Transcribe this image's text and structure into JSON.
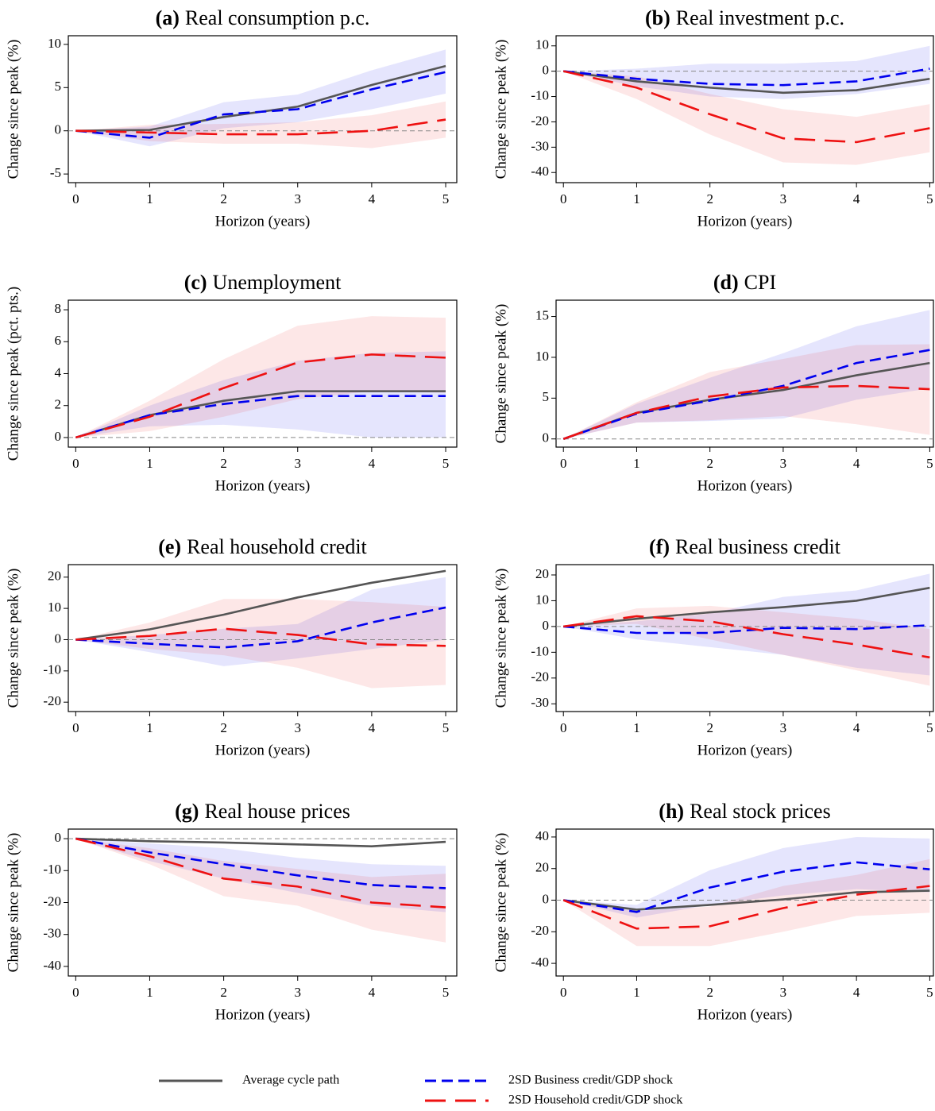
{
  "chart_data": [
    {
      "type": "line",
      "panel_label": "(a)",
      "title": "Real consumption p.c.",
      "xlabel": "Horizon (years)",
      "ylabel": "Change since peak (%)",
      "x": [
        0,
        1,
        2,
        3,
        4,
        5
      ],
      "xlim": [
        -0.1,
        5.15
      ],
      "xticks": [
        0,
        1,
        2,
        3,
        4,
        5
      ],
      "ylim": [
        -6,
        11
      ],
      "yticks": [
        -5,
        0,
        5,
        10
      ],
      "zero_line": true,
      "series": [
        {
          "name": "Average cycle path",
          "color": "#555555",
          "style": "solid",
          "values": [
            0,
            0.1,
            1.6,
            2.8,
            5.3,
            7.5
          ]
        },
        {
          "name": "2SD Business credit/GDP shock",
          "color": "#0000ee",
          "style": "dash",
          "values": [
            0,
            -0.8,
            1.9,
            2.5,
            4.8,
            6.8
          ],
          "band_lower": [
            0,
            -1.8,
            0.3,
            1,
            2.5,
            4.3
          ],
          "band_upper": [
            0,
            0.5,
            3.3,
            4.2,
            7,
            9.4
          ]
        },
        {
          "name": "2SD Household credit/GDP shock",
          "color": "#ee1111",
          "style": "longdash",
          "values": [
            0,
            -0.2,
            -0.4,
            -0.4,
            0,
            1.3
          ],
          "band_lower": [
            0,
            -1.2,
            -1.5,
            -1.5,
            -2,
            -0.8
          ],
          "band_upper": [
            0,
            0.7,
            0.8,
            1,
            1.8,
            3.4
          ]
        }
      ]
    },
    {
      "type": "line",
      "panel_label": "(b)",
      "title": "Real investment p.c.",
      "xlabel": "Horizon (years)",
      "ylabel": "Change since peak (%)",
      "x": [
        0,
        1,
        2,
        3,
        4,
        5
      ],
      "xlim": [
        -0.1,
        5.05
      ],
      "xticks": [
        0,
        1,
        2,
        3,
        4,
        5
      ],
      "ylim": [
        -44,
        14
      ],
      "yticks": [
        -40,
        -30,
        -20,
        -10,
        0,
        10
      ],
      "zero_line": true,
      "series": [
        {
          "name": "Average cycle path",
          "color": "#555555",
          "style": "solid",
          "values": [
            0,
            -4,
            -6.5,
            -8.5,
            -7.5,
            -3
          ]
        },
        {
          "name": "2SD Business credit/GDP shock",
          "color": "#0000ee",
          "style": "dash",
          "values": [
            0,
            -3,
            -5,
            -5.5,
            -4,
            1
          ],
          "band_lower": [
            0,
            -6,
            -10,
            -11,
            -9,
            -5
          ],
          "band_upper": [
            0,
            1,
            3,
            3,
            4,
            10
          ]
        },
        {
          "name": "2SD Household credit/GDP shock",
          "color": "#ee1111",
          "style": "longdash",
          "values": [
            0,
            -6.5,
            -17,
            -26.5,
            -28,
            -22.5
          ],
          "band_lower": [
            0,
            -11,
            -25,
            -36,
            -37,
            -32
          ],
          "band_upper": [
            0,
            -2,
            -9,
            -15,
            -18,
            -13
          ]
        }
      ]
    },
    {
      "type": "line",
      "panel_label": "(c)",
      "title": "Unemployment",
      "xlabel": "Horizon (years)",
      "ylabel": "Change since peak (pct. pts.)",
      "x": [
        0,
        1,
        2,
        3,
        4,
        5
      ],
      "xlim": [
        -0.1,
        5.15
      ],
      "xticks": [
        0,
        1,
        2,
        3,
        4,
        5
      ],
      "ylim": [
        -0.6,
        8.6
      ],
      "yticks": [
        0,
        2,
        4,
        6,
        8
      ],
      "zero_line": true,
      "series": [
        {
          "name": "Average cycle path",
          "color": "#555555",
          "style": "solid",
          "values": [
            0,
            1.4,
            2.3,
            2.9,
            2.9,
            2.9
          ]
        },
        {
          "name": "2SD Business credit/GDP shock",
          "color": "#0000ee",
          "style": "dash",
          "values": [
            0,
            1.4,
            2.1,
            2.6,
            2.6,
            2.6
          ],
          "band_lower": [
            0,
            0.7,
            0.8,
            0.5,
            0,
            0
          ],
          "band_upper": [
            0,
            2,
            3.6,
            4.8,
            5.3,
            5.4
          ]
        },
        {
          "name": "2SD Household credit/GDP shock",
          "color": "#ee1111",
          "style": "longdash",
          "values": [
            0,
            1.3,
            3.1,
            4.7,
            5.2,
            5.0
          ],
          "band_lower": [
            0,
            0.4,
            1.3,
            2.4,
            2.9,
            2.8
          ],
          "band_upper": [
            0,
            2.3,
            4.9,
            7,
            7.6,
            7.5
          ]
        }
      ]
    },
    {
      "type": "line",
      "panel_label": "(d)",
      "title": "CPI",
      "xlabel": "Horizon (years)",
      "ylabel": "Change since peak (%)",
      "x": [
        0,
        1,
        2,
        3,
        4,
        5
      ],
      "xlim": [
        -0.1,
        5.05
      ],
      "xticks": [
        0,
        1,
        2,
        3,
        4,
        5
      ],
      "ylim": [
        -1,
        17
      ],
      "yticks": [
        0,
        5,
        10,
        15
      ],
      "zero_line": true,
      "series": [
        {
          "name": "Average cycle path",
          "color": "#555555",
          "style": "solid",
          "values": [
            0,
            3.2,
            4.8,
            6,
            7.8,
            9.3
          ]
        },
        {
          "name": "2SD Business credit/GDP shock",
          "color": "#0000ee",
          "style": "dash",
          "values": [
            0,
            3.1,
            4.7,
            6.5,
            9.3,
            10.9
          ],
          "band_lower": [
            0,
            2,
            2.2,
            2.5,
            4.8,
            6.2
          ],
          "band_upper": [
            0,
            4.3,
            7.5,
            10.5,
            13.8,
            15.8
          ]
        },
        {
          "name": "2SD Household credit/GDP shock",
          "color": "#ee1111",
          "style": "longdash",
          "values": [
            0,
            3.2,
            5.2,
            6.3,
            6.5,
            6.1
          ],
          "band_lower": [
            0,
            2,
            2.3,
            2.8,
            1.8,
            0.5
          ],
          "band_upper": [
            0,
            4.5,
            8.2,
            9.8,
            11.5,
            11.6
          ]
        }
      ]
    },
    {
      "type": "line",
      "panel_label": "(e)",
      "title": "Real household credit",
      "xlabel": "Horizon (years)",
      "ylabel": "Change since peak (%)",
      "x": [
        0,
        1,
        2,
        3,
        4,
        5
      ],
      "xlim": [
        -0.1,
        5.15
      ],
      "xticks": [
        0,
        1,
        2,
        3,
        4,
        5
      ],
      "ylim": [
        -23,
        24
      ],
      "yticks": [
        -20,
        -10,
        0,
        10,
        20
      ],
      "zero_line": true,
      "series": [
        {
          "name": "Average cycle path",
          "color": "#555555",
          "style": "solid",
          "values": [
            0,
            3.3,
            8,
            13.5,
            18.2,
            22
          ]
        },
        {
          "name": "2SD Business credit/GDP shock",
          "color": "#0000ee",
          "style": "dash",
          "values": [
            0,
            -1.3,
            -2.5,
            -0.5,
            5.5,
            10.3
          ],
          "band_lower": [
            0,
            -4,
            -8.5,
            -6,
            -3,
            0
          ],
          "band_upper": [
            0,
            1.5,
            3.5,
            5,
            16,
            20
          ]
        },
        {
          "name": "2SD Household credit/GDP shock",
          "color": "#ee1111",
          "style": "longdash",
          "values": [
            0,
            1.2,
            3.5,
            1.5,
            -1.5,
            -2
          ],
          "band_lower": [
            0,
            -3,
            -5,
            -9,
            -15.5,
            -14.5
          ],
          "band_upper": [
            0,
            5.5,
            13,
            13,
            12,
            10.5
          ]
        }
      ]
    },
    {
      "type": "line",
      "panel_label": "(f)",
      "title": "Real business credit",
      "xlabel": "Horizon (years)",
      "ylabel": "Change since peak (%)",
      "x": [
        0,
        1,
        2,
        3,
        4,
        5
      ],
      "xlim": [
        -0.1,
        5.05
      ],
      "xticks": [
        0,
        1,
        2,
        3,
        4,
        5
      ],
      "ylim": [
        -33,
        24
      ],
      "yticks": [
        -30,
        -20,
        -10,
        0,
        10,
        20
      ],
      "zero_line": true,
      "series": [
        {
          "name": "Average cycle path",
          "color": "#555555",
          "style": "solid",
          "values": [
            0,
            3,
            5.5,
            7.5,
            10,
            15
          ]
        },
        {
          "name": "2SD Business credit/GDP shock",
          "color": "#0000ee",
          "style": "dash",
          "values": [
            0,
            -2.5,
            -2.5,
            -0.5,
            -1,
            0.5
          ],
          "band_lower": [
            0,
            -5,
            -8,
            -11,
            -16,
            -19
          ],
          "band_upper": [
            0,
            2,
            5,
            11.5,
            14,
            20.5
          ]
        },
        {
          "name": "2SD Household credit/GDP shock",
          "color": "#ee1111",
          "style": "longdash",
          "values": [
            0,
            4,
            2,
            -3,
            -7,
            -12
          ],
          "band_lower": [
            0,
            1,
            -5,
            -11,
            -17,
            -23
          ],
          "band_upper": [
            0,
            7,
            8,
            5.5,
            3,
            -1
          ]
        }
      ]
    },
    {
      "type": "line",
      "panel_label": "(g)",
      "title": "Real house prices",
      "xlabel": "Horizon (years)",
      "ylabel": "Change since peak (%)",
      "x": [
        0,
        1,
        2,
        3,
        4,
        5
      ],
      "xlim": [
        -0.1,
        5.15
      ],
      "xticks": [
        0,
        1,
        2,
        3,
        4,
        5
      ],
      "ylim": [
        -43,
        3
      ],
      "yticks": [
        -40,
        -30,
        -20,
        -10,
        0
      ],
      "zero_line": true,
      "series": [
        {
          "name": "Average cycle path",
          "color": "#555555",
          "style": "solid",
          "values": [
            0,
            -0.8,
            -1.2,
            -1.8,
            -2.4,
            -1
          ]
        },
        {
          "name": "2SD Business credit/GDP shock",
          "color": "#0000ee",
          "style": "dash",
          "values": [
            0,
            -4.3,
            -8,
            -11.5,
            -14.5,
            -15.5
          ],
          "band_lower": [
            0,
            -7,
            -12.5,
            -17,
            -21,
            -23
          ],
          "band_upper": [
            0,
            -1.5,
            -3,
            -6,
            -8,
            -8.5
          ]
        },
        {
          "name": "2SD Household credit/GDP shock",
          "color": "#ee1111",
          "style": "longdash",
          "values": [
            0,
            -5.5,
            -12.5,
            -15,
            -20,
            -21.5
          ],
          "band_lower": [
            0,
            -8,
            -18,
            -21,
            -28.5,
            -32.5
          ],
          "band_upper": [
            0,
            -3,
            -7,
            -9.5,
            -12,
            -11
          ]
        }
      ]
    },
    {
      "type": "line",
      "panel_label": "(h)",
      "title": "Real stock prices",
      "xlabel": "Horizon (years)",
      "ylabel": "Change since peak (%)",
      "x": [
        0,
        1,
        2,
        3,
        4,
        5
      ],
      "xlim": [
        -0.1,
        5.05
      ],
      "xticks": [
        0,
        1,
        2,
        3,
        4,
        5
      ],
      "ylim": [
        -48,
        45
      ],
      "yticks": [
        -40,
        -20,
        0,
        20,
        40
      ],
      "zero_line": true,
      "series": [
        {
          "name": "Average cycle path",
          "color": "#555555",
          "style": "solid",
          "values": [
            0,
            -6,
            -3,
            0.5,
            5,
            6
          ]
        },
        {
          "name": "2SD Business credit/GDP shock",
          "color": "#0000ee",
          "style": "dash",
          "values": [
            0,
            -7.5,
            8,
            18,
            24,
            19.5
          ],
          "band_lower": [
            0,
            -11,
            -3,
            3,
            7,
            5
          ],
          "band_upper": [
            0,
            -3,
            19,
            33,
            40,
            39
          ]
        },
        {
          "name": "2SD Household credit/GDP shock",
          "color": "#ee1111",
          "style": "longdash",
          "values": [
            0,
            -18,
            -16.5,
            -5,
            3.5,
            9
          ],
          "band_lower": [
            0,
            -29,
            -29,
            -20,
            -10,
            -8
          ],
          "band_upper": [
            0,
            -7,
            -4,
            9,
            16,
            26
          ]
        }
      ]
    }
  ]
}
